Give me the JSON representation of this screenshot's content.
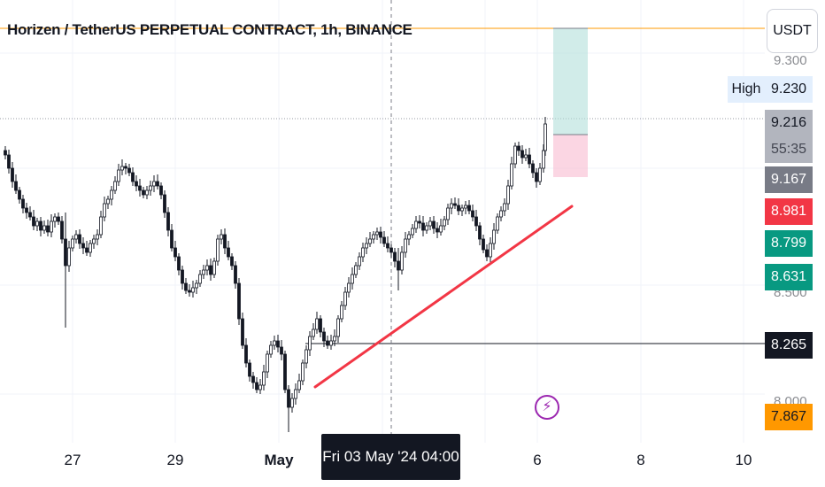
{
  "header": {
    "title": "Horizen / TetherUS PERPETUAL CONTRACT, 1h, BINANCE"
  },
  "price_scale": {
    "currency": "USDT",
    "high_label": "High",
    "high_value": "9.230",
    "last_price": "9.216",
    "countdown": "55:35",
    "faded_top": "9.300",
    "faded_mid": "8.500",
    "faded_low": "8.000",
    "labels": [
      {
        "value": "9.167",
        "color": "#787b86"
      },
      {
        "value": "8.981",
        "color": "#f23645"
      },
      {
        "value": "8.799",
        "color": "#089981"
      },
      {
        "value": "8.631",
        "color": "#089981"
      },
      {
        "value": "8.265",
        "color": "#131722"
      },
      {
        "value": "7.867",
        "color": "#ff9800"
      }
    ]
  },
  "time_axis": {
    "labels": [
      "27",
      "29",
      "May",
      "6",
      "8",
      "10"
    ],
    "crosshair_label": "Fri 03 May '24   04:00"
  },
  "colors": {
    "up": "#089981",
    "down": "#f23645",
    "trendline": "#f23645",
    "alert_line": "#ff9800",
    "target_zone": "#b2dfdb",
    "stop_zone": "#f8bbd0"
  },
  "icons": {
    "flash": "lightning-icon"
  },
  "chart_data": {
    "type": "candlestick",
    "title": "Horizen / TetherUS PERPETUAL CONTRACT, 1h, BINANCE",
    "y_range": [
      7.85,
      9.45
    ],
    "x_ticks": [
      "27",
      "29",
      "May",
      "6",
      "8",
      "10"
    ],
    "trend_points": [
      [
        7.91,
        8.25
      ],
      [
        8.26,
        8.92
      ],
      [
        8.68,
        9.02
      ],
      [
        9.0,
        9.17
      ]
    ],
    "price_lines": {
      "alert": 9.4,
      "high": 9.23,
      "last": 9.216,
      "horizontal": 8.265
    },
    "position": {
      "entry": 9.167,
      "target": 9.4,
      "stop": 8.981
    },
    "trendline": [
      [
        8.07,
        8.981
      ]
    ]
  }
}
